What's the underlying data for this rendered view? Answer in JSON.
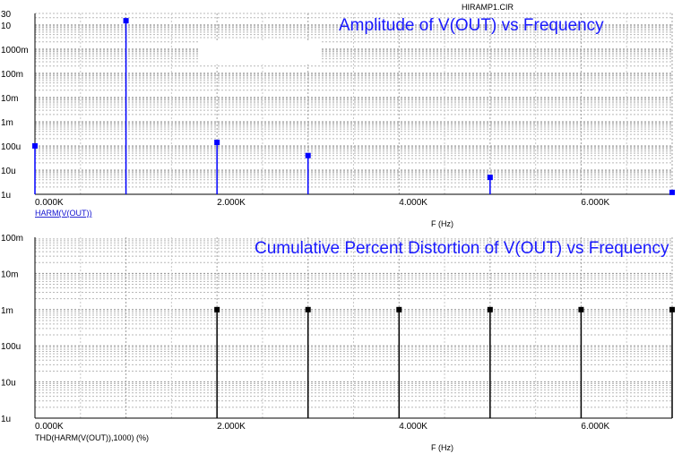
{
  "window": {
    "title": "HIRAMP1.CIR"
  },
  "chart_data": [
    {
      "type": "stem",
      "log_y": true,
      "title": "Amplitude of V(OUT) vs Frequency",
      "xlabel": "F (Hz)",
      "ylabel": "",
      "trace_label": "HARM(V(OUT))",
      "xlim": [
        0,
        7000
      ],
      "ylim": [
        1e-06,
        30
      ],
      "x_ticks": [
        {
          "value": 0,
          "label": "0.000K"
        },
        {
          "value": 2000,
          "label": "2.000K"
        },
        {
          "value": 4000,
          "label": "4.000K"
        },
        {
          "value": 6000,
          "label": "6.000K"
        }
      ],
      "y_ticks": [
        {
          "value": 30,
          "label": "30"
        },
        {
          "value": 10,
          "label": "10"
        },
        {
          "value": 1,
          "label": "1000m"
        },
        {
          "value": 0.1,
          "label": "100m"
        },
        {
          "value": 0.01,
          "label": "10m"
        },
        {
          "value": 0.001,
          "label": "1m"
        },
        {
          "value": 0.0001,
          "label": "100u"
        },
        {
          "value": 1e-05,
          "label": "10u"
        },
        {
          "value": 1e-06,
          "label": "1u"
        }
      ],
      "color": "#0000ff",
      "points": [
        {
          "x": 0,
          "y": 0.0001
        },
        {
          "x": 1000,
          "y": 15
        },
        {
          "x": 2000,
          "y": 0.00014
        },
        {
          "x": 3000,
          "y": 4e-05
        },
        {
          "x": 5000,
          "y": 5e-06
        },
        {
          "x": 7000,
          "y": 1.2e-06
        }
      ]
    },
    {
      "type": "stem",
      "log_y": true,
      "title": "Cumulative Percent Distortion of V(OUT) vs Frequency",
      "xlabel": "F (Hz)",
      "ylabel": "",
      "trace_label": "THD(HARM(V(OUT)),1000) (%)",
      "xlim": [
        0,
        7000
      ],
      "ylim": [
        1e-06,
        0.1
      ],
      "x_ticks": [
        {
          "value": 0,
          "label": "0.000K"
        },
        {
          "value": 2000,
          "label": "2.000K"
        },
        {
          "value": 4000,
          "label": "4.000K"
        },
        {
          "value": 6000,
          "label": "6.000K"
        }
      ],
      "y_ticks": [
        {
          "value": 0.1,
          "label": "100m"
        },
        {
          "value": 0.01,
          "label": "10m"
        },
        {
          "value": 0.001,
          "label": "1m"
        },
        {
          "value": 0.0001,
          "label": "100u"
        },
        {
          "value": 1e-05,
          "label": "10u"
        },
        {
          "value": 1e-06,
          "label": "1u"
        }
      ],
      "color": "#000000",
      "points": [
        {
          "x": 2000,
          "y": 0.001
        },
        {
          "x": 3000,
          "y": 0.001
        },
        {
          "x": 4000,
          "y": 0.001
        },
        {
          "x": 5000,
          "y": 0.001
        },
        {
          "x": 6000,
          "y": 0.001
        },
        {
          "x": 7000,
          "y": 0.001
        }
      ]
    }
  ]
}
